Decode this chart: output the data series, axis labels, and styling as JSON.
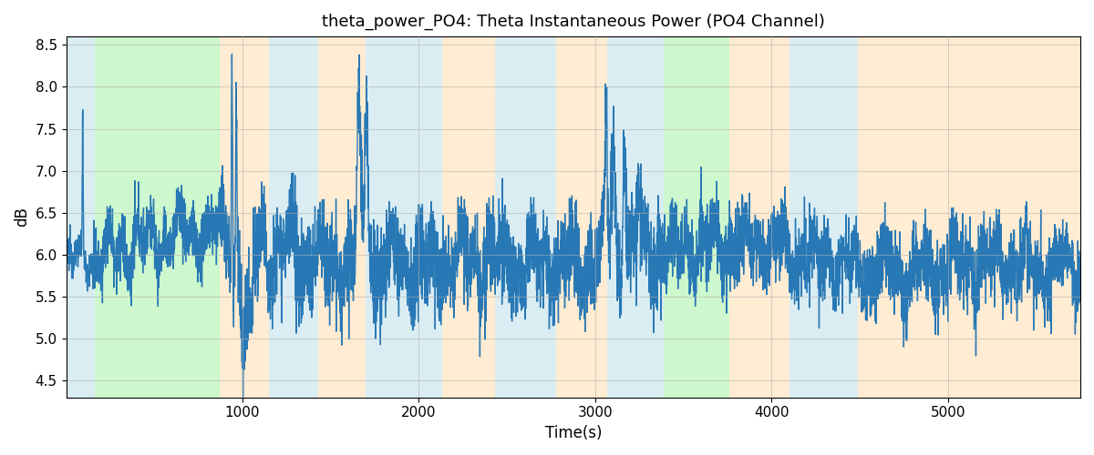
{
  "title": "theta_power_PO4: Theta Instantaneous Power (PO4 Channel)",
  "xlabel": "Time(s)",
  "ylabel": "dB",
  "ylim": [
    4.3,
    8.6
  ],
  "xlim": [
    0,
    5750
  ],
  "line_color": "#2878b5",
  "line_width": 1.0,
  "background_color": "#ffffff",
  "grid_color": "#b0b0b0",
  "bands": [
    {
      "xmin": 0,
      "xmax": 165,
      "color": "#add8e6",
      "alpha": 0.45
    },
    {
      "xmin": 165,
      "xmax": 870,
      "color": "#90ee90",
      "alpha": 0.45
    },
    {
      "xmin": 870,
      "xmax": 1150,
      "color": "#ffdead",
      "alpha": 0.55
    },
    {
      "xmin": 1150,
      "xmax": 1430,
      "color": "#add8e6",
      "alpha": 0.45
    },
    {
      "xmin": 1430,
      "xmax": 1700,
      "color": "#ffdead",
      "alpha": 0.55
    },
    {
      "xmin": 1700,
      "xmax": 2130,
      "color": "#add8e6",
      "alpha": 0.45
    },
    {
      "xmin": 2130,
      "xmax": 2430,
      "color": "#ffdead",
      "alpha": 0.55
    },
    {
      "xmin": 2430,
      "xmax": 2780,
      "color": "#add8e6",
      "alpha": 0.45
    },
    {
      "xmin": 2780,
      "xmax": 3070,
      "color": "#ffdead",
      "alpha": 0.55
    },
    {
      "xmin": 3070,
      "xmax": 3390,
      "color": "#add8e6",
      "alpha": 0.45
    },
    {
      "xmin": 3390,
      "xmax": 3760,
      "color": "#90ee90",
      "alpha": 0.45
    },
    {
      "xmin": 3760,
      "xmax": 4100,
      "color": "#ffdead",
      "alpha": 0.55
    },
    {
      "xmin": 4100,
      "xmax": 4490,
      "color": "#add8e6",
      "alpha": 0.45
    },
    {
      "xmin": 4490,
      "xmax": 4780,
      "color": "#ffdead",
      "alpha": 0.55
    },
    {
      "xmin": 4780,
      "xmax": 5750,
      "color": "#ffdead",
      "alpha": 0.55
    }
  ],
  "title_fontsize": 13,
  "tick_fontsize": 11,
  "label_fontsize": 12
}
